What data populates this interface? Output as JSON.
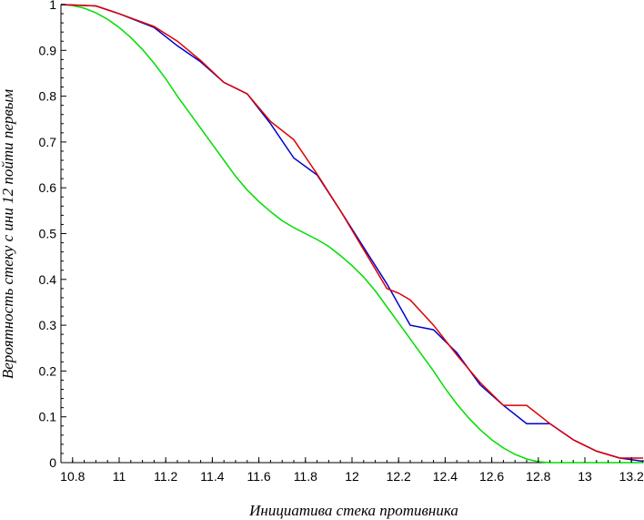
{
  "chart_data": {
    "type": "line",
    "title": "",
    "xlabel": "Инициатива стека противника",
    "ylabel": "Вероятность стеку с ини 12 пойти первым",
    "xlim": [
      10.75,
      13.25
    ],
    "ylim": [
      0,
      1
    ],
    "x_ticks": [
      "10.8",
      "11",
      "11.2",
      "11.4",
      "11.6",
      "11.8",
      "12",
      "12.2",
      "12.4",
      "12.6",
      "12.8",
      "13",
      "13.2"
    ],
    "y_ticks": [
      "0",
      "0.1",
      "0.2",
      "0.3",
      "0.4",
      "0.5",
      "0.6",
      "0.7",
      "0.8",
      "0.9",
      "1"
    ],
    "grid": false,
    "legend": "none",
    "series": [
      {
        "color": "#00dd00",
        "x": [
          10.75,
          10.8,
          10.85,
          10.9,
          10.95,
          11.0,
          11.05,
          11.1,
          11.15,
          11.2,
          11.25,
          11.3,
          11.35,
          11.4,
          11.45,
          11.5,
          11.55,
          11.6,
          11.65,
          11.7,
          11.75,
          11.8,
          11.85,
          11.9,
          11.95,
          12.0,
          12.05,
          12.1,
          12.15,
          12.2,
          12.25,
          12.3,
          12.35,
          12.4,
          12.45,
          12.5,
          12.55,
          12.6,
          12.65,
          12.7,
          12.75,
          12.8,
          12.85,
          12.9,
          12.95,
          13.0,
          13.05,
          13.1,
          13.15,
          13.2,
          13.25
        ],
        "y": [
          1.0,
          0.998,
          0.992,
          0.982,
          0.968,
          0.95,
          0.928,
          0.902,
          0.872,
          0.838,
          0.8,
          0.765,
          0.73,
          0.695,
          0.66,
          0.625,
          0.595,
          0.57,
          0.548,
          0.528,
          0.513,
          0.5,
          0.487,
          0.472,
          0.452,
          0.43,
          0.405,
          0.375,
          0.34,
          0.305,
          0.27,
          0.235,
          0.2,
          0.162,
          0.128,
          0.098,
          0.072,
          0.05,
          0.032,
          0.018,
          0.008,
          0.002,
          0.0,
          0.0,
          0.0,
          0.0,
          0.0,
          0.0,
          0.0,
          0.0,
          0.0
        ]
      },
      {
        "color": "#0000cc",
        "x": [
          10.75,
          10.9,
          11.0,
          11.15,
          11.25,
          11.35,
          11.45,
          11.55,
          11.65,
          11.75,
          11.85,
          11.95,
          12.05,
          12.15,
          12.25,
          12.35,
          12.45,
          12.55,
          12.65,
          12.75,
          12.85,
          12.95,
          13.05,
          13.15,
          13.25
        ],
        "y": [
          1.0,
          0.997,
          0.98,
          0.95,
          0.91,
          0.875,
          0.83,
          0.805,
          0.74,
          0.665,
          0.628,
          0.55,
          0.47,
          0.39,
          0.3,
          0.29,
          0.24,
          0.17,
          0.125,
          0.085,
          0.085,
          0.05,
          0.025,
          0.01,
          0.003
        ]
      },
      {
        "color": "#dd0000",
        "x": [
          10.75,
          10.9,
          11.0,
          11.15,
          11.25,
          11.35,
          11.45,
          11.55,
          11.65,
          11.75,
          11.85,
          11.95,
          12.05,
          12.15,
          12.2,
          12.25,
          12.35,
          12.45,
          12.55,
          12.65,
          12.75,
          12.85,
          12.95,
          13.05,
          13.15,
          13.25
        ],
        "y": [
          1.0,
          0.997,
          0.98,
          0.952,
          0.92,
          0.878,
          0.83,
          0.805,
          0.745,
          0.705,
          0.63,
          0.55,
          0.465,
          0.38,
          0.37,
          0.355,
          0.3,
          0.235,
          0.175,
          0.125,
          0.125,
          0.085,
          0.05,
          0.025,
          0.01,
          0.01
        ]
      }
    ]
  }
}
